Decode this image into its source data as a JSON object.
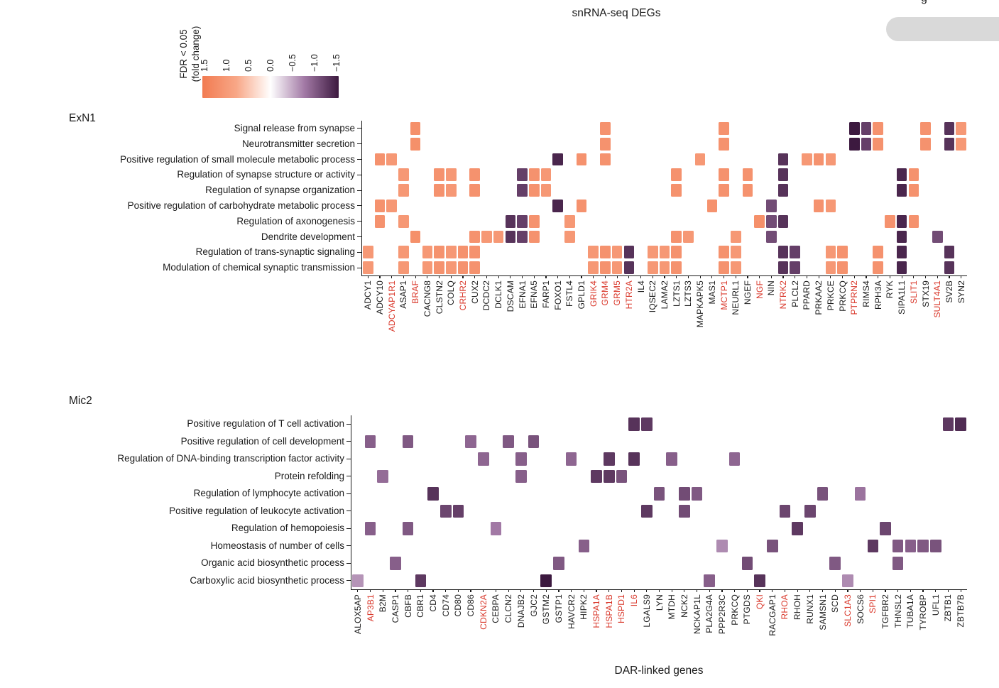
{
  "page": {
    "title": "snRNA-seq DEGs",
    "xlabel": "DAR-linked genes",
    "corner_fragment": "g"
  },
  "legend": {
    "label_line1": "FDR < 0.05",
    "label_line2": "(fold change)",
    "ticks": [
      "1.5",
      "1.0",
      "0.5",
      "0.0",
      "−0.5",
      "−1.0",
      "−1.5"
    ],
    "colormap_stops": [
      {
        "v": -1.5,
        "c": "#3c193f"
      },
      {
        "v": -0.75,
        "c": "#a279a5"
      },
      {
        "v": 0.0,
        "c": "#ffffff"
      },
      {
        "v": 0.75,
        "c": "#f8a787"
      },
      {
        "v": 1.5,
        "c": "#f27b51"
      }
    ],
    "red_gene_color": "#d9372a"
  },
  "chart_data": [
    {
      "type": "heatmap",
      "panel": "ExN1",
      "value_meaning": "fold change (FDR < 0.05), blank = not significant",
      "genes": [
        {
          "name": "ADCY1",
          "red": false,
          "fc": 1.0
        },
        {
          "name": "ADCY10",
          "red": false,
          "fc": 1.1
        },
        {
          "name": "ADCYAP1R1",
          "red": true,
          "fc": 1.0
        },
        {
          "name": "ASAP1",
          "red": false,
          "fc": 1.0
        },
        {
          "name": "BRAF",
          "red": true,
          "fc": 1.15
        },
        {
          "name": "CACNG8",
          "red": false,
          "fc": 1.0
        },
        {
          "name": "CLSTN2",
          "red": false,
          "fc": 1.1
        },
        {
          "name": "COLQ",
          "red": false,
          "fc": 1.0
        },
        {
          "name": "CRHR2",
          "red": true,
          "fc": 1.1
        },
        {
          "name": "CUX2",
          "red": false,
          "fc": 1.1
        },
        {
          "name": "DCDC2",
          "red": false,
          "fc": 1.0
        },
        {
          "name": "DCLK1",
          "red": false,
          "fc": 1.0
        },
        {
          "name": "DSCAM",
          "red": false,
          "fc": -1.3
        },
        {
          "name": "EFNA1",
          "red": false,
          "fc": -1.2
        },
        {
          "name": "EFNA5",
          "red": false,
          "fc": 1.1
        },
        {
          "name": "FARP1",
          "red": false,
          "fc": 1.0
        },
        {
          "name": "FOXO1",
          "red": false,
          "fc": -1.4
        },
        {
          "name": "FSTL4",
          "red": false,
          "fc": 1.0
        },
        {
          "name": "GPLD1",
          "red": false,
          "fc": 1.1
        },
        {
          "name": "GRIK4",
          "red": true,
          "fc": 1.0
        },
        {
          "name": "GRM4",
          "red": true,
          "fc": 1.1
        },
        {
          "name": "GRM5",
          "red": true,
          "fc": 1.0
        },
        {
          "name": "HTR2A",
          "red": true,
          "fc": -1.3
        },
        {
          "name": "IL4",
          "red": false,
          "fc": 1.0
        },
        {
          "name": "IQSEC2",
          "red": false,
          "fc": 1.0
        },
        {
          "name": "LAMA2",
          "red": false,
          "fc": 1.0
        },
        {
          "name": "LZTS1",
          "red": false,
          "fc": 1.1
        },
        {
          "name": "LZTS3",
          "red": false,
          "fc": 1.0
        },
        {
          "name": "MAPKAPK5",
          "red": false,
          "fc": 1.0
        },
        {
          "name": "MAS1",
          "red": false,
          "fc": 1.1
        },
        {
          "name": "MCTP1",
          "red": true,
          "fc": 1.1
        },
        {
          "name": "NEURL1",
          "red": false,
          "fc": 1.0
        },
        {
          "name": "NGEF",
          "red": false,
          "fc": 1.1
        },
        {
          "name": "NGF",
          "red": true,
          "fc": 1.15
        },
        {
          "name": "NIN",
          "red": false,
          "fc": -1.1
        },
        {
          "name": "NTRK2",
          "red": true,
          "fc": -1.3
        },
        {
          "name": "PLCL2",
          "red": false,
          "fc": -1.2
        },
        {
          "name": "PPARD",
          "red": false,
          "fc": 1.0
        },
        {
          "name": "PRKAA2",
          "red": false,
          "fc": 1.1
        },
        {
          "name": "PRKCE",
          "red": false,
          "fc": 1.0
        },
        {
          "name": "PRKCQ",
          "red": false,
          "fc": 1.1
        },
        {
          "name": "PTPRN2",
          "red": true,
          "fc": -1.5
        },
        {
          "name": "RIMS4",
          "red": false,
          "fc": -1.2
        },
        {
          "name": "RPH3A",
          "red": false,
          "fc": 1.1
        },
        {
          "name": "RYK",
          "red": false,
          "fc": 1.1
        },
        {
          "name": "SIPA1L1",
          "red": false,
          "fc": -1.4
        },
        {
          "name": "SLIT1",
          "red": true,
          "fc": 1.1
        },
        {
          "name": "STX19",
          "red": false,
          "fc": 1.1
        },
        {
          "name": "SULT4A1",
          "red": true,
          "fc": -1.1
        },
        {
          "name": "SV2B",
          "red": false,
          "fc": -1.3
        },
        {
          "name": "SYN2",
          "red": false,
          "fc": 1.0
        }
      ],
      "rows": [
        {
          "label": "Signal release from synapse",
          "genes": [
            "BRAF",
            "GRM4",
            "MCTP1",
            "PTPRN2",
            "RIMS4",
            "RPH3A",
            "STX19",
            "SV2B",
            "SYN2"
          ]
        },
        {
          "label": "Neurotransmitter secretion",
          "genes": [
            "BRAF",
            "GRM4",
            "MCTP1",
            "PTPRN2",
            "RIMS4",
            "RPH3A",
            "STX19",
            "SV2B",
            "SYN2"
          ]
        },
        {
          "label": "Positive regulation of small molecule metabolic process",
          "genes": [
            "ADCY10",
            "ADCYAP1R1",
            "FOXO1",
            "GPLD1",
            "GRM4",
            "MAPKAPK5",
            "NTRK2",
            "PPARD",
            "PRKAA2",
            "PRKCE"
          ]
        },
        {
          "label": "Regulation of synapse structure or activity",
          "genes": [
            "ASAP1",
            "CLSTN2",
            "COLQ",
            "CUX2",
            "EFNA1",
            "EFNA5",
            "FARP1",
            "LZTS1",
            "MCTP1",
            "NGEF",
            "NTRK2",
            "SIPA1L1",
            "SLIT1"
          ]
        },
        {
          "label": "Regulation of synapse organization",
          "genes": [
            "ASAP1",
            "CLSTN2",
            "COLQ",
            "CUX2",
            "EFNA1",
            "EFNA5",
            "FARP1",
            "LZTS1",
            "MCTP1",
            "NGEF",
            "NTRK2",
            "SIPA1L1",
            "SLIT1"
          ]
        },
        {
          "label": "Positive regulation of carbohydrate metabolic process",
          "genes": [
            "ADCY10",
            "ADCYAP1R1",
            "FOXO1",
            "GPLD1",
            "MAS1",
            "NIN",
            "PRKAA2",
            "PRKCE"
          ]
        },
        {
          "label": "Regulation of axonogenesis",
          "genes": [
            "ADCY10",
            "ASAP1",
            "DSCAM",
            "EFNA1",
            "EFNA5",
            "FSTL4",
            "NGF",
            "NIN",
            "NTRK2",
            "RYK",
            "SIPA1L1",
            "SLIT1"
          ]
        },
        {
          "label": "Dendrite development",
          "genes": [
            "BRAF",
            "CUX2",
            "DCDC2",
            "DCLK1",
            "DSCAM",
            "EFNA1",
            "EFNA5",
            "FSTL4",
            "LZTS1",
            "LZTS3",
            "NEURL1",
            "NIN",
            "SIPA1L1",
            "SULT4A1"
          ]
        },
        {
          "label": "Regulation of trans-synaptic signaling",
          "genes": [
            "ADCY1",
            "ASAP1",
            "CACNG8",
            "CLSTN2",
            "COLQ",
            "CRHR2",
            "CUX2",
            "GRIK4",
            "GRM4",
            "GRM5",
            "HTR2A",
            "IQSEC2",
            "LAMA2",
            "LZTS1",
            "MCTP1",
            "NEURL1",
            "NTRK2",
            "PLCL2",
            "PRKCE",
            "PRKCQ",
            "RPH3A",
            "SIPA1L1",
            "SV2B"
          ]
        },
        {
          "label": "Modulation of chemical synaptic transmission",
          "genes": [
            "ADCY1",
            "ASAP1",
            "CACNG8",
            "CLSTN2",
            "COLQ",
            "CRHR2",
            "CUX2",
            "GRIK4",
            "GRM4",
            "GRM5",
            "HTR2A",
            "IQSEC2",
            "LAMA2",
            "LZTS1",
            "MCTP1",
            "NEURL1",
            "NTRK2",
            "PLCL2",
            "PRKCE",
            "PRKCQ",
            "RPH3A",
            "SIPA1L1",
            "SV2B"
          ]
        }
      ]
    },
    {
      "type": "heatmap",
      "panel": "Mic2",
      "value_meaning": "fold change (FDR < 0.05), blank = not significant",
      "genes": [
        {
          "name": "ALOX5AP",
          "red": false,
          "fc": -0.6
        },
        {
          "name": "AP3B1",
          "red": true,
          "fc": -0.95
        },
        {
          "name": "B2M",
          "red": false,
          "fc": -0.85
        },
        {
          "name": "CASP1",
          "red": false,
          "fc": -0.95
        },
        {
          "name": "CBFB",
          "red": false,
          "fc": -1.0
        },
        {
          "name": "CBR1",
          "red": false,
          "fc": -1.25
        },
        {
          "name": "CD4",
          "red": false,
          "fc": -1.3
        },
        {
          "name": "CD74",
          "red": false,
          "fc": -1.15
        },
        {
          "name": "CD80",
          "red": false,
          "fc": -1.2
        },
        {
          "name": "CD86",
          "red": false,
          "fc": -0.9
        },
        {
          "name": "CDKN2A",
          "red": true,
          "fc": -0.9
        },
        {
          "name": "CEBPA",
          "red": false,
          "fc": -0.75
        },
        {
          "name": "CLCN2",
          "red": false,
          "fc": -1.0
        },
        {
          "name": "DNAJB2",
          "red": false,
          "fc": -0.95
        },
        {
          "name": "GJC2",
          "red": false,
          "fc": -1.05
        },
        {
          "name": "GSTM2",
          "red": false,
          "fc": -1.5
        },
        {
          "name": "GSTP1",
          "red": false,
          "fc": -1.0
        },
        {
          "name": "HAVCR2",
          "red": false,
          "fc": -0.9
        },
        {
          "name": "HIPK2",
          "red": false,
          "fc": -0.95
        },
        {
          "name": "HSPA1A",
          "red": true,
          "fc": -1.25
        },
        {
          "name": "HSPA1B",
          "red": true,
          "fc": -1.25
        },
        {
          "name": "HSPD1",
          "red": true,
          "fc": -1.05
        },
        {
          "name": "IL6",
          "red": true,
          "fc": -1.3
        },
        {
          "name": "LGALS9",
          "red": false,
          "fc": -1.25
        },
        {
          "name": "LYN",
          "red": false,
          "fc": -1.05
        },
        {
          "name": "MTDH",
          "red": false,
          "fc": -0.95
        },
        {
          "name": "NCK2",
          "red": false,
          "fc": -1.1
        },
        {
          "name": "NCKAP1L",
          "red": false,
          "fc": -1.0
        },
        {
          "name": "PLA2G4A",
          "red": false,
          "fc": -0.95
        },
        {
          "name": "PPP2R3C",
          "red": false,
          "fc": -0.65
        },
        {
          "name": "PRKCQ",
          "red": false,
          "fc": -0.9
        },
        {
          "name": "PTGDS",
          "red": false,
          "fc": -1.1
        },
        {
          "name": "QKI",
          "red": true,
          "fc": -1.3
        },
        {
          "name": "RACGAP1",
          "red": false,
          "fc": -1.05
        },
        {
          "name": "RHOA",
          "red": true,
          "fc": -1.15
        },
        {
          "name": "RHOH",
          "red": false,
          "fc": -1.25
        },
        {
          "name": "RUNX1",
          "red": false,
          "fc": -1.15
        },
        {
          "name": "SAMSN1",
          "red": false,
          "fc": -1.05
        },
        {
          "name": "SCD",
          "red": false,
          "fc": -1.0
        },
        {
          "name": "SLC1A3",
          "red": true,
          "fc": -0.65
        },
        {
          "name": "SOCS6",
          "red": false,
          "fc": -0.8
        },
        {
          "name": "SPI1",
          "red": true,
          "fc": -1.25
        },
        {
          "name": "TGFBR2",
          "red": false,
          "fc": -1.15
        },
        {
          "name": "THNSL2",
          "red": false,
          "fc": -1.0
        },
        {
          "name": "TUBA1A",
          "red": false,
          "fc": -0.95
        },
        {
          "name": "TYROBP",
          "red": false,
          "fc": -1.0
        },
        {
          "name": "UFL1",
          "red": false,
          "fc": -1.05
        },
        {
          "name": "ZBTB1",
          "red": false,
          "fc": -1.25
        },
        {
          "name": "ZBTB7B",
          "red": false,
          "fc": -1.35
        }
      ],
      "rows": [
        {
          "label": "Positive regulation of T cell activation",
          "genes": [
            "IL6",
            "LGALS9",
            "ZBTB1",
            "ZBTB7B"
          ]
        },
        {
          "label": "Positive regulation of cell development",
          "genes": [
            "AP3B1",
            "CBFB",
            "CD86",
            "CLCN2",
            "GJC2"
          ]
        },
        {
          "label": "Regulation of DNA-binding transcription factor activity",
          "genes": [
            "CDKN2A",
            "DNAJB2",
            "HAVCR2",
            "HSPA1B",
            "IL6",
            "MTDH",
            "PRKCQ"
          ]
        },
        {
          "label": "Protein refolding",
          "genes": [
            "B2M",
            "DNAJB2",
            "HSPA1A",
            "HSPA1B",
            "HSPD1"
          ]
        },
        {
          "label": "Regulation of lymphocyte activation",
          "genes": [
            "CD4",
            "LYN",
            "NCK2",
            "NCKAP1L",
            "SAMSN1",
            "SOCS6"
          ]
        },
        {
          "label": "Positive regulation of leukocyte activation",
          "genes": [
            "CD74",
            "CD80",
            "LGALS9",
            "NCK2",
            "RHOA",
            "RUNX1"
          ]
        },
        {
          "label": "Regulation of hemopoiesis",
          "genes": [
            "AP3B1",
            "CBFB",
            "CEBPA",
            "RHOH",
            "TGFBR2"
          ]
        },
        {
          "label": "Homeostasis of number of cells",
          "genes": [
            "HIPK2",
            "PPP2R3C",
            "RACGAP1",
            "SPI1",
            "THNSL2",
            "TUBA1A",
            "TYROBP",
            "UFL1"
          ]
        },
        {
          "label": "Organic acid biosynthetic process",
          "genes": [
            "CASP1",
            "GSTP1",
            "PTGDS",
            "SCD",
            "THNSL2"
          ]
        },
        {
          "label": "Carboxylic acid biosynthetic process",
          "genes": [
            "ALOX5AP",
            "CBR1",
            "GSTM2",
            "PLA2G4A",
            "QKI",
            "SLC1A3"
          ]
        }
      ]
    }
  ]
}
